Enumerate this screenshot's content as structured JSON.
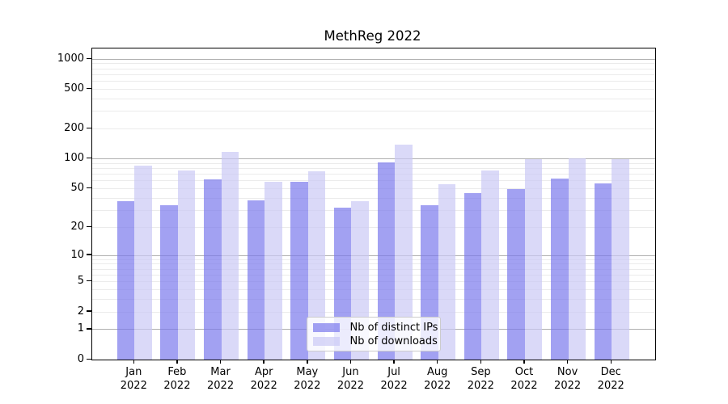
{
  "chart_data": {
    "type": "bar",
    "title": "MethReg 2022",
    "grid": "horizontal",
    "legend_position": "lower-center-inside",
    "categories": [
      {
        "month": "Jan",
        "year": "2022"
      },
      {
        "month": "Feb",
        "year": "2022"
      },
      {
        "month": "Mar",
        "year": "2022"
      },
      {
        "month": "Apr",
        "year": "2022"
      },
      {
        "month": "May",
        "year": "2022"
      },
      {
        "month": "Jun",
        "year": "2022"
      },
      {
        "month": "Jul",
        "year": "2022"
      },
      {
        "month": "Aug",
        "year": "2022"
      },
      {
        "month": "Sep",
        "year": "2022"
      },
      {
        "month": "Oct",
        "year": "2022"
      },
      {
        "month": "Nov",
        "year": "2022"
      },
      {
        "month": "Dec",
        "year": "2022"
      }
    ],
    "series": [
      {
        "name": "Nb of distinct IPs",
        "color": "rgba(122,121,236,0.70)",
        "values": [
          37,
          34,
          62,
          38,
          59,
          32,
          92,
          34,
          45,
          50,
          64,
          57
        ]
      },
      {
        "name": "Nb of downloads",
        "color": "rgba(203,201,245,0.70)",
        "values": [
          85,
          76,
          118,
          59,
          75,
          37,
          140,
          56,
          77,
          100,
          101,
          100
        ]
      }
    ],
    "y_axis": {
      "scale": "log1p",
      "tick_values": [
        0,
        1,
        2,
        5,
        10,
        20,
        50,
        100,
        200,
        500,
        1000
      ],
      "tick_labels": [
        "0",
        "1",
        "2",
        "5",
        "10",
        "20",
        "50",
        "100",
        "200",
        "500",
        "1000"
      ],
      "ylim": [
        0,
        1266
      ],
      "major_gridlines": [
        1,
        10,
        100,
        1000
      ],
      "minor_gridlines": [
        2,
        3,
        4,
        5,
        6,
        7,
        8,
        9,
        20,
        30,
        40,
        50,
        60,
        70,
        80,
        90,
        200,
        300,
        400,
        500,
        600,
        700,
        800,
        900
      ]
    },
    "style": {
      "major_grid_color": "#b0b0b0",
      "minor_grid_color": "#ebebeb",
      "axis_color": "#000000",
      "background_color": "#ffffff",
      "legend_border_color": "#cccccc",
      "text_color": "#000000"
    }
  }
}
